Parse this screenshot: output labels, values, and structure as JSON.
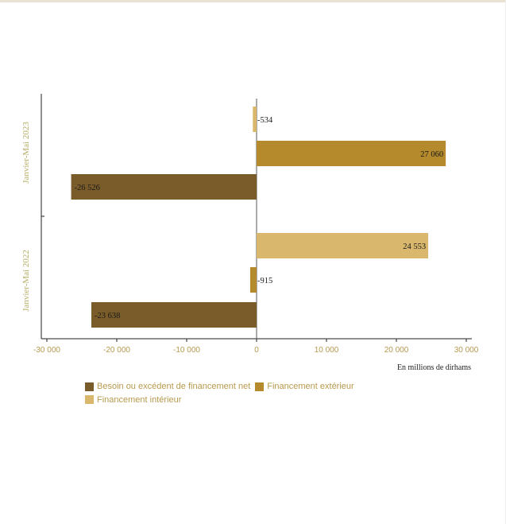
{
  "chart_data": {
    "type": "bar",
    "orientation": "horizontal",
    "categories": [
      "Janvier-Mai 2023",
      "Janvier-Mai 2022"
    ],
    "series": [
      {
        "name": "Besoin ou excédent de financement net",
        "color": "#7a5c2a",
        "values": [
          -26526,
          -23638
        ],
        "labels": [
          "-26 526",
          "-23 638"
        ]
      },
      {
        "name": "Financement extérieur",
        "color": "#b48a2c",
        "values": [
          27060,
          -915
        ],
        "labels": [
          "27 060",
          "-915"
        ]
      },
      {
        "name": "Financement intérieur",
        "color": "#d9b86e",
        "values": [
          -534,
          24553
        ],
        "labels": [
          "-534",
          "24 553"
        ]
      }
    ],
    "xlim": [
      -30000,
      30000
    ],
    "xticks": [
      -30000,
      -20000,
      -10000,
      0,
      10000,
      20000,
      30000
    ],
    "xtick_labels": [
      "-30 000",
      "-20 000",
      "-10 000",
      "0",
      "10 000",
      "20 000",
      "30 000"
    ],
    "xlabel": "En millions de dirhams",
    "grid": false,
    "legend_position": "bottom-left",
    "colors": {
      "category_label": "#b5ad63",
      "tick_label": "#b89a4e",
      "legend_text": "#b89a4e"
    }
  }
}
